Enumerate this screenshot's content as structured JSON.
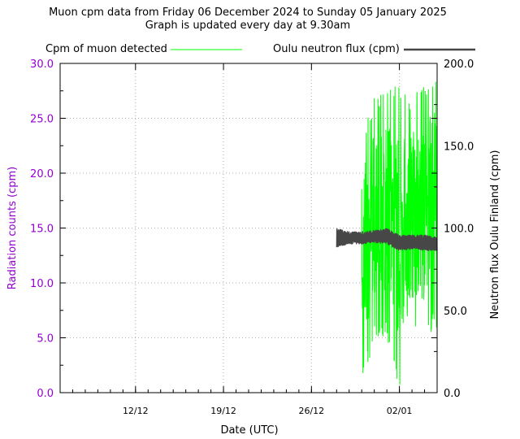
{
  "chart_data": {
    "type": "line",
    "title": "Muon cpm data from Friday 06 December 2024 to Sunday 05 January 2025",
    "subtitle": "Graph is updated every day at 9.30am",
    "xlabel": "Date (UTC)",
    "ylabel": "Radiation counts (cpm)",
    "y2label": "Neutron flux Oulu Finland (cpm)",
    "xrange": [
      "2024-12-06",
      "2025-01-05"
    ],
    "ylim": [
      0,
      30
    ],
    "y2lim": [
      0,
      200
    ],
    "yticks": [
      "0.0",
      "5.0",
      "10.0",
      "15.0",
      "20.0",
      "25.0",
      "30.0"
    ],
    "y2ticks": [
      "0.0",
      "50.0",
      "100.0",
      "150.0",
      "200.0"
    ],
    "xticks": [
      {
        "label": "12/12",
        "date": "2024-12-12"
      },
      {
        "label": "19/12",
        "date": "2024-12-19"
      },
      {
        "label": "26/12",
        "date": "2024-12-26"
      },
      {
        "label": "02/01",
        "date": "2025-01-02"
      }
    ],
    "grid": true,
    "legend_position": "top",
    "series": [
      {
        "name": "Cpm of muon detected",
        "axis": "left",
        "color": "#00ff00",
        "x": [
          "2024-12-30",
          "2024-12-31",
          "2025-01-01",
          "2025-01-02",
          "2025-01-03",
          "2025-01-04",
          "2025-01-05"
        ],
        "y_min": [
          0,
          5,
          5,
          0,
          5,
          5,
          6
        ],
        "y_max": [
          24,
          27,
          28,
          28,
          27,
          28,
          30
        ]
      },
      {
        "name": "Oulu neutron flux (cpm)",
        "axis": "right",
        "color": "#474747",
        "x": [
          "2024-12-28",
          "2024-12-29",
          "2024-12-30",
          "2024-12-31",
          "2025-01-01",
          "2025-01-02",
          "2025-01-03",
          "2025-01-04",
          "2025-01-05"
        ],
        "y_min": [
          88,
          90,
          90,
          91,
          90,
          86,
          87,
          86,
          86
        ],
        "y_max": [
          100,
          98,
          98,
          99,
          100,
          96,
          96,
          96,
          95
        ]
      }
    ]
  }
}
